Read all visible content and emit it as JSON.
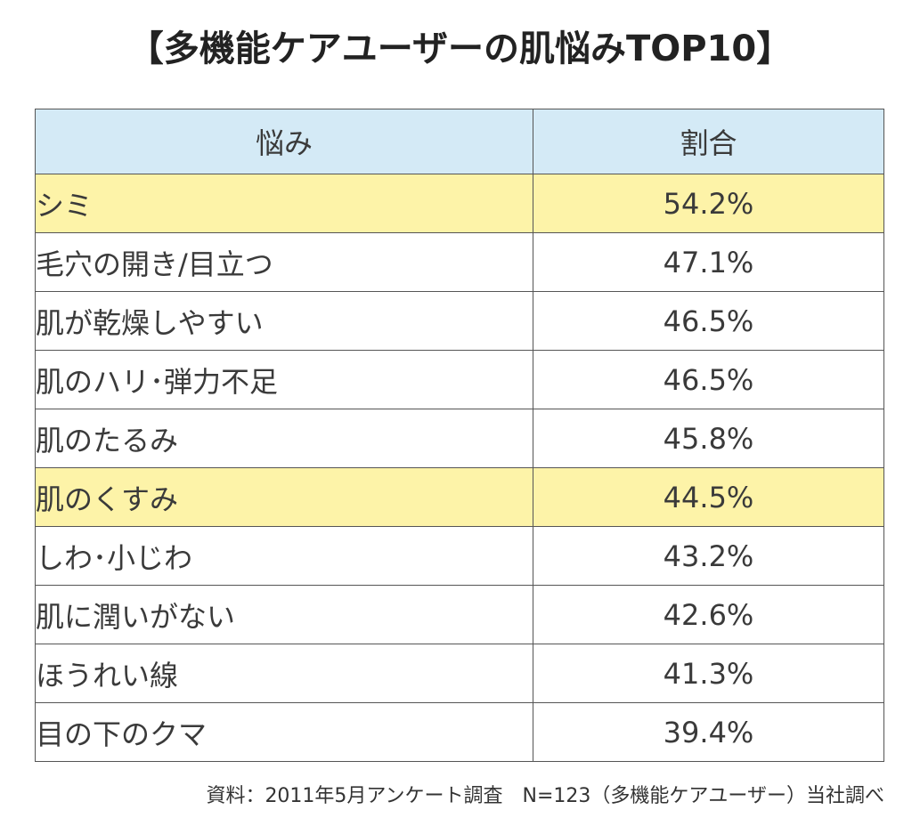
{
  "title": "【多機能ケアユーザーの肌悩みTOP10】",
  "headers": {
    "concern": "悩み",
    "ratio": "割合"
  },
  "chart_data": {
    "type": "table",
    "title": "【多機能ケアユーザーの肌悩みTOP10】",
    "columns": [
      "悩み",
      "割合"
    ],
    "rows": [
      {
        "label": "シミ",
        "value": 54.2,
        "display": "54.2%",
        "highlight": true
      },
      {
        "label": "毛穴の開き/目立つ",
        "value": 47.1,
        "display": "47.1%",
        "highlight": false
      },
      {
        "label": "肌が乾燥しやすい",
        "value": 46.5,
        "display": "46.5%",
        "highlight": false
      },
      {
        "label": "肌のハリ･弾力不足",
        "value": 46.5,
        "display": "46.5%",
        "highlight": false
      },
      {
        "label": "肌のたるみ",
        "value": 45.8,
        "display": "45.8%",
        "highlight": false
      },
      {
        "label": "肌のくすみ",
        "value": 44.5,
        "display": "44.5%",
        "highlight": true
      },
      {
        "label": "しわ･小じわ",
        "value": 43.2,
        "display": "43.2%",
        "highlight": false
      },
      {
        "label": "肌に潤いがない",
        "value": 42.6,
        "display": "42.6%",
        "highlight": false
      },
      {
        "label": "ほうれい線",
        "value": 41.3,
        "display": "41.3%",
        "highlight": false
      },
      {
        "label": "目の下のクマ",
        "value": 39.4,
        "display": "39.4%",
        "highlight": false
      }
    ]
  },
  "colors": {
    "header_bg": "#d4eaf6",
    "highlight_bg": "#fdf3a8",
    "border": "#555555"
  },
  "source": "資料：2011年5月アンケート調査　N=123（多機能ケアユーザー）当社調べ"
}
